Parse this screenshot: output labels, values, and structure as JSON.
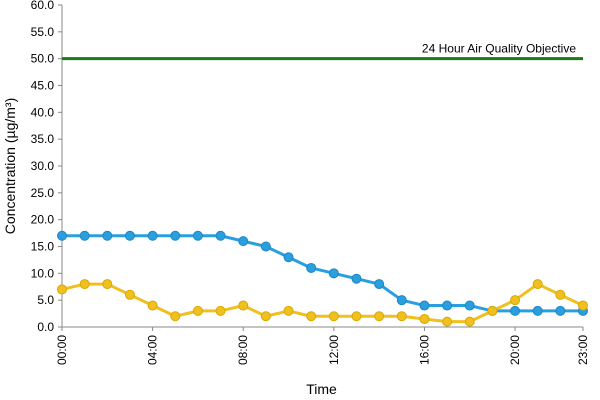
{
  "chart_data": {
    "type": "line",
    "title": "",
    "xlabel": "Time",
    "ylabel": "Concentration (µg/m³)",
    "ylim": [
      0,
      60
    ],
    "y_ticks": [
      "0.0",
      "5.0",
      "10.0",
      "15.0",
      "20.0",
      "25.0",
      "30.0",
      "35.0",
      "40.0",
      "45.0",
      "50.0",
      "55.0",
      "60.0"
    ],
    "x_ticks": [
      "00:00",
      "04:00",
      "08:00",
      "12:00",
      "16:00",
      "20:00",
      "23:00"
    ],
    "x_tick_hours": [
      0,
      4,
      8,
      12,
      16,
      20,
      23
    ],
    "x": [
      0,
      1,
      2,
      3,
      4,
      5,
      6,
      7,
      8,
      9,
      10,
      11,
      12,
      13,
      14,
      15,
      16,
      17,
      18,
      19,
      20,
      21,
      22,
      23
    ],
    "series": [
      {
        "color": "#2a9fe0",
        "values": [
          17,
          17,
          17,
          17,
          17,
          17,
          17,
          17,
          16,
          15,
          13,
          11,
          10,
          9,
          8,
          5,
          4,
          4,
          4,
          3,
          3,
          3,
          3,
          3
        ]
      },
      {
        "color": "#f0c020",
        "values": [
          7,
          8,
          8,
          6,
          4,
          2,
          3,
          3,
          4,
          2,
          3,
          2,
          2,
          2,
          2,
          2,
          1.5,
          1,
          1,
          3,
          5,
          8,
          6,
          4
        ]
      }
    ],
    "reference_lines": [
      {
        "value": 50,
        "label": "24 Hour Air Quality Objective",
        "color": "#1a7a1a"
      }
    ],
    "grid": false,
    "legend": "none"
  }
}
